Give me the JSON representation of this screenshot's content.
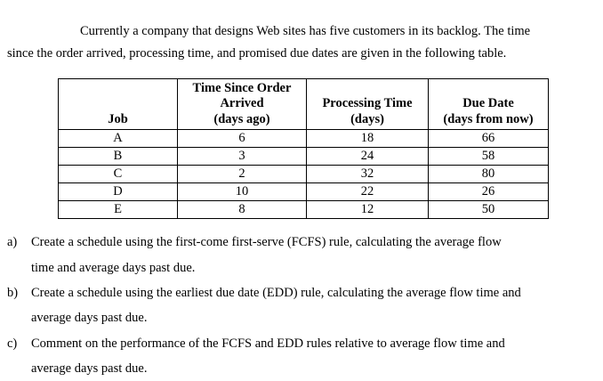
{
  "intro": {
    "text": "Currently a company that designs Web sites has five customers in its backlog. The time\nsince the order arrived, processing time, and promised due dates are given in the following table."
  },
  "table": {
    "headers": {
      "job": "Job",
      "time_since_order": "Time Since Order\nArrived\n(days ago)",
      "processing_time": "Processing Time\n(days)",
      "due_date": "Due Date\n(days from now)"
    },
    "rows": [
      {
        "job": "A",
        "time_since_order": "6",
        "processing_time": "18",
        "due_date": "66"
      },
      {
        "job": "B",
        "time_since_order": "3",
        "processing_time": "24",
        "due_date": "58"
      },
      {
        "job": "C",
        "time_since_order": "2",
        "processing_time": "32",
        "due_date": "80"
      },
      {
        "job": "D",
        "time_since_order": "10",
        "processing_time": "22",
        "due_date": "26"
      },
      {
        "job": "E",
        "time_since_order": "8",
        "processing_time": "12",
        "due_date": "50"
      }
    ]
  },
  "questions": [
    {
      "label": "a)",
      "text": "Create a schedule using the first-come first-serve (FCFS) rule, calculating the average flow\ntime and average days past due."
    },
    {
      "label": "b)",
      "text": "Create a schedule using the earliest due date (EDD) rule, calculating the average flow time and\naverage days past due."
    },
    {
      "label": "c)",
      "text": "Comment on the performance of the FCFS and EDD rules relative to average flow time and\naverage days past due."
    }
  ]
}
